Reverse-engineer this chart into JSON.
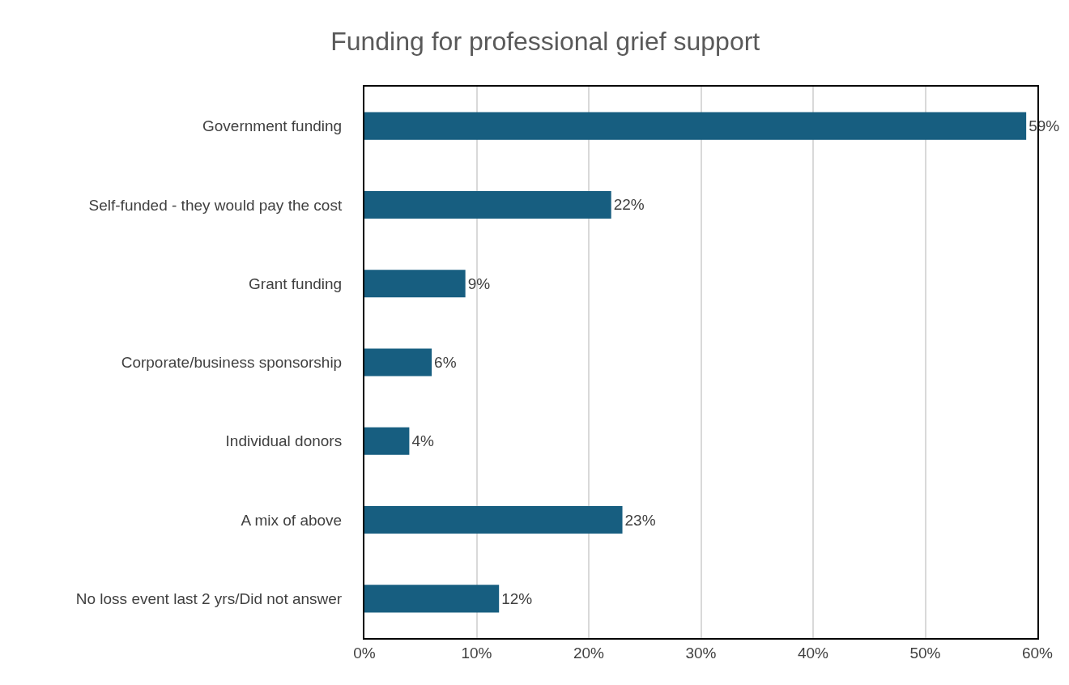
{
  "chart_data": {
    "type": "bar",
    "orientation": "horizontal",
    "title": "Funding for professional grief support",
    "categories": [
      "Government funding",
      "Self-funded - they would pay the cost",
      "Grant funding",
      "Corporate/business sponsorship",
      "Individual donors",
      "A mix of above",
      "No loss event last 2 yrs/Did not answer"
    ],
    "values": [
      59,
      22,
      9,
      6,
      4,
      23,
      12
    ],
    "value_labels": [
      "59%",
      "22%",
      "9%",
      "6%",
      "4%",
      "23%",
      "12%"
    ],
    "color": "#175e80",
    "xlim": [
      0,
      60
    ],
    "xticks": [
      {
        "value": 0,
        "label": "0%"
      },
      {
        "value": 10,
        "label": "10%"
      },
      {
        "value": 20,
        "label": "20%"
      },
      {
        "value": 30,
        "label": "30%"
      },
      {
        "value": 40,
        "label": "40%"
      },
      {
        "value": 50,
        "label": "50%"
      },
      {
        "value": 60,
        "label": "60%"
      }
    ],
    "grid": "x"
  }
}
